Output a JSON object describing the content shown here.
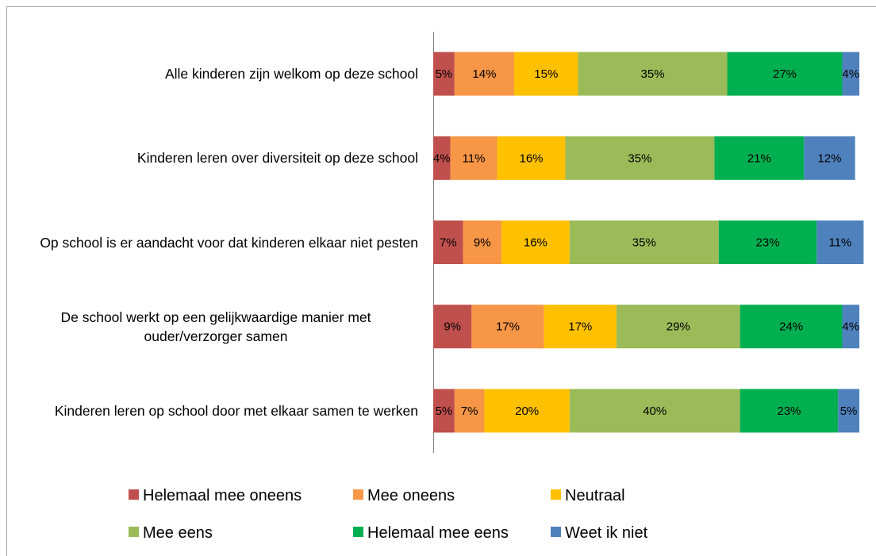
{
  "chart_data": {
    "type": "stacked-barh",
    "categories": [
      "Alle kinderen zijn welkom op deze school",
      "Kinderen leren over diversiteit op deze school",
      "Op school is er aandacht voor dat kinderen elkaar niet pesten",
      "De school werkt op een gelijkwaardige manier met ouder/verzorger samen",
      "Kinderen leren op school door met elkaar samen te werken"
    ],
    "series": [
      {
        "name": "Helemaal mee oneens",
        "color": "#c0504d",
        "values": [
          5,
          4,
          7,
          9,
          5
        ],
        "value_labels": [
          "5%",
          "4%",
          "7%",
          "9%",
          "5%"
        ]
      },
      {
        "name": "Mee oneens",
        "color": "#f79646",
        "values": [
          14,
          11,
          9,
          17,
          7
        ],
        "value_labels": [
          "14%",
          "11%",
          "9%",
          "17%",
          "7%"
        ]
      },
      {
        "name": "Neutraal",
        "color": "#ffc000",
        "values": [
          15,
          16,
          16,
          17,
          20
        ],
        "value_labels": [
          "15%",
          "16%",
          "16%",
          "17%",
          "20%"
        ]
      },
      {
        "name": "Mee eens",
        "color": "#9bbb59",
        "values": [
          35,
          35,
          35,
          29,
          40
        ],
        "value_labels": [
          "35%",
          "35%",
          "35%",
          "29%",
          "40%"
        ]
      },
      {
        "name": "Helemaal mee eens",
        "color": "#00b050",
        "values": [
          27,
          21,
          23,
          24,
          23
        ],
        "value_labels": [
          "27%",
          "21%",
          "23%",
          "24%",
          "23%"
        ]
      },
      {
        "name": "Weet ik niet",
        "color": "#4f81bd",
        "values": [
          4,
          12,
          11,
          4,
          5
        ],
        "value_labels": [
          "4%",
          "12%",
          "11%",
          "4%",
          "5%"
        ]
      }
    ],
    "xlim": [
      0,
      100
    ],
    "legend": "bottom"
  }
}
